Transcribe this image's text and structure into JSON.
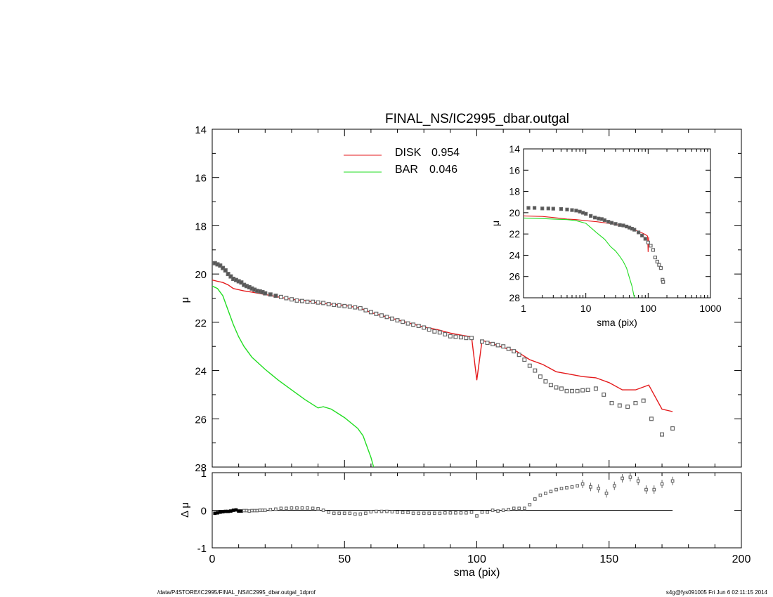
{
  "colors": {
    "disk": "#e41a1c",
    "bar": "#22dd22",
    "data_marker": "#666666",
    "axes": "#000000"
  },
  "footer": {
    "left": "/data/P4STORE/IC2995/FINAL_NS/IC2995_dbar.outgal_1dprof",
    "right": "s4g@fys091005  Fri Jun  6 02:11:15 2014"
  },
  "chart_data": [
    {
      "type": "scatter",
      "title": "FINAL_NS/IC2995_dbar.outgal",
      "xlabel": "",
      "ylabel": "μ",
      "xlim": [
        0,
        200
      ],
      "ylim": [
        28,
        14
      ],
      "y_inverted": true,
      "yticks": [
        14,
        16,
        18,
        20,
        22,
        24,
        26,
        28
      ],
      "legend": [
        {
          "name": "DISK",
          "value": "0.954"
        },
        {
          "name": "BAR",
          "value": "0.046"
        }
      ],
      "legend_position": "top-center",
      "series": [
        {
          "name": "DISK",
          "style": "line",
          "x": [
            0,
            2,
            4,
            6,
            8,
            10,
            12,
            15,
            20,
            25,
            30,
            35,
            40,
            45,
            50,
            55,
            58,
            60,
            65,
            70,
            75,
            80,
            85,
            90,
            95,
            98,
            100,
            102,
            105,
            110,
            115,
            120,
            125,
            130,
            135,
            140,
            145,
            150,
            155,
            160,
            165,
            170,
            174
          ],
          "y": [
            20.25,
            20.3,
            20.35,
            20.45,
            20.6,
            20.65,
            20.7,
            20.75,
            20.85,
            20.95,
            21.05,
            21.1,
            21.2,
            21.25,
            21.3,
            21.4,
            21.5,
            21.6,
            21.75,
            21.9,
            22.05,
            22.2,
            22.3,
            22.45,
            22.55,
            22.6,
            24.4,
            22.75,
            22.85,
            23.05,
            23.2,
            23.55,
            23.75,
            24.05,
            24.15,
            24.25,
            24.3,
            24.5,
            24.8,
            24.8,
            24.6,
            25.6,
            25.7
          ]
        },
        {
          "name": "BAR",
          "style": "line",
          "x": [
            0,
            2,
            4,
            6,
            8,
            10,
            12,
            15,
            20,
            25,
            30,
            35,
            40,
            42,
            45,
            50,
            55,
            57,
            60,
            61
          ],
          "y": [
            20.5,
            20.6,
            20.9,
            21.5,
            22.1,
            22.6,
            23.0,
            23.45,
            23.95,
            24.4,
            24.8,
            25.2,
            25.55,
            25.5,
            25.6,
            25.95,
            26.4,
            26.7,
            27.6,
            28.0
          ]
        },
        {
          "name": "data",
          "style": "markers",
          "x": [
            1,
            2,
            3,
            4,
            5,
            6,
            7,
            8,
            9,
            10,
            11,
            12,
            13,
            14,
            15,
            16,
            17,
            18,
            19,
            20,
            22,
            24,
            26,
            28,
            30,
            32,
            34,
            36,
            38,
            40,
            42,
            44,
            46,
            48,
            50,
            52,
            54,
            56,
            58,
            60,
            62,
            64,
            66,
            68,
            70,
            72,
            74,
            76,
            78,
            80,
            82,
            84,
            86,
            88,
            90,
            92,
            94,
            96,
            98,
            102,
            104,
            106,
            108,
            110,
            112,
            114,
            116,
            118,
            120,
            122,
            124,
            126,
            128,
            130,
            132,
            134,
            136,
            138,
            140,
            142,
            145,
            148,
            151,
            154,
            157,
            160,
            163,
            166,
            170,
            174
          ],
          "y": [
            19.55,
            19.6,
            19.65,
            19.75,
            19.85,
            20.0,
            20.1,
            20.2,
            20.25,
            20.3,
            20.35,
            20.45,
            20.5,
            20.55,
            20.6,
            20.65,
            20.7,
            20.72,
            20.75,
            20.8,
            20.85,
            20.9,
            20.95,
            21.0,
            21.05,
            21.1,
            21.12,
            21.15,
            21.15,
            21.18,
            21.2,
            21.25,
            21.28,
            21.3,
            21.33,
            21.35,
            21.38,
            21.42,
            21.5,
            21.58,
            21.65,
            21.72,
            21.78,
            21.85,
            21.92,
            21.98,
            22.05,
            22.1,
            22.15,
            22.22,
            22.3,
            22.38,
            22.42,
            22.5,
            22.58,
            22.6,
            22.62,
            22.65,
            22.65,
            22.8,
            22.85,
            22.9,
            22.95,
            23.0,
            23.1,
            23.2,
            23.35,
            23.55,
            23.8,
            24.0,
            24.25,
            24.45,
            24.6,
            24.7,
            24.75,
            24.85,
            24.85,
            24.85,
            24.82,
            24.8,
            24.75,
            25.0,
            25.35,
            25.45,
            25.5,
            25.35,
            25.25,
            26.0,
            26.65,
            26.4
          ]
        }
      ]
    },
    {
      "type": "scatter",
      "title": "",
      "xlabel": "sma (pix)",
      "ylabel": "μ",
      "xscale": "log",
      "xlim": [
        1,
        1000
      ],
      "xticks": [
        "1",
        "10",
        "100",
        "1000"
      ],
      "ylim": [
        28,
        14
      ],
      "y_inverted": true,
      "yticks": [
        14,
        16,
        18,
        20,
        22,
        24,
        26,
        28
      ],
      "inset_position": "top-right",
      "series": [
        {
          "name": "DISK",
          "style": "line",
          "x": [
            1,
            2,
            3,
            5,
            7,
            10,
            15,
            20,
            30,
            40,
            50,
            60,
            70,
            80,
            90,
            98,
            100,
            102
          ],
          "y": [
            20.3,
            20.35,
            20.45,
            20.6,
            20.65,
            20.75,
            20.85,
            20.95,
            21.1,
            21.25,
            21.4,
            21.6,
            21.75,
            21.9,
            22.05,
            22.2,
            23.7,
            22.3
          ]
        },
        {
          "name": "BAR",
          "style": "line",
          "x": [
            1,
            2,
            3,
            5,
            7,
            10,
            12,
            15,
            20,
            25,
            30,
            35,
            40,
            45,
            50,
            55,
            60
          ],
          "y": [
            20.5,
            20.55,
            20.6,
            20.65,
            20.75,
            21.0,
            21.4,
            21.9,
            22.5,
            23.2,
            23.6,
            24.1,
            24.6,
            25.2,
            26.1,
            26.9,
            28.0
          ]
        },
        {
          "name": "data",
          "style": "markers",
          "x": [
            1.2,
            1.5,
            2,
            2.5,
            3,
            4,
            5,
            6,
            7,
            8,
            9,
            10,
            12,
            14,
            16,
            18,
            20,
            23,
            26,
            30,
            35,
            40,
            45,
            50,
            55,
            60,
            70,
            80,
            90,
            100,
            110,
            120,
            130,
            140,
            150,
            160,
            170,
            174
          ],
          "y": [
            19.55,
            19.55,
            19.6,
            19.6,
            19.62,
            19.65,
            19.7,
            19.75,
            19.8,
            19.9,
            20.0,
            20.1,
            20.3,
            20.45,
            20.55,
            20.6,
            20.7,
            20.85,
            20.95,
            21.05,
            21.15,
            21.2,
            21.3,
            21.4,
            21.5,
            21.6,
            21.85,
            22.15,
            22.45,
            22.8,
            23.1,
            23.5,
            24.2,
            24.6,
            24.9,
            25.2,
            26.3,
            26.5
          ]
        }
      ]
    },
    {
      "type": "scatter",
      "title": "",
      "xlabel": "sma (pix)",
      "ylabel": "Δ μ",
      "xlim": [
        0,
        200
      ],
      "xticks": [
        0,
        50,
        100,
        150,
        200
      ],
      "ylim": [
        -1,
        1
      ],
      "yticks": [
        -1,
        0,
        1
      ],
      "reference_line": {
        "y": 0,
        "x_end": 174
      },
      "series": [
        {
          "name": "residual",
          "style": "markers",
          "x": [
            1,
            2,
            3,
            4,
            5,
            6,
            7,
            8,
            9,
            10,
            11,
            12,
            13,
            14,
            15,
            16,
            17,
            18,
            19,
            20,
            22,
            24,
            26,
            28,
            30,
            32,
            34,
            36,
            38,
            40,
            42,
            44,
            46,
            48,
            50,
            52,
            54,
            56,
            58,
            60,
            62,
            64,
            66,
            68,
            70,
            72,
            74,
            76,
            78,
            80,
            82,
            84,
            86,
            88,
            90,
            92,
            94,
            96,
            98,
            100,
            102,
            104,
            106,
            108,
            110,
            112,
            114,
            116,
            118,
            120,
            122,
            124,
            126,
            128,
            130,
            132,
            134,
            136,
            138,
            140,
            143,
            146,
            149,
            152,
            155,
            158,
            161,
            164,
            167,
            170,
            174
          ],
          "y": [
            -0.08,
            -0.07,
            -0.05,
            -0.04,
            -0.03,
            -0.03,
            -0.02,
            0.0,
            0.01,
            -0.02,
            -0.02,
            -0.01,
            -0.01,
            -0.02,
            -0.01,
            -0.01,
            -0.01,
            0.0,
            0.0,
            0.0,
            0.02,
            0.03,
            0.05,
            0.05,
            0.06,
            0.06,
            0.06,
            0.06,
            0.05,
            0.04,
            0.0,
            -0.05,
            -0.08,
            -0.08,
            -0.08,
            -0.08,
            -0.1,
            -0.1,
            -0.08,
            -0.04,
            -0.03,
            -0.03,
            -0.03,
            -0.04,
            -0.05,
            -0.06,
            -0.06,
            -0.08,
            -0.08,
            -0.08,
            -0.08,
            -0.08,
            -0.08,
            -0.07,
            -0.07,
            -0.07,
            -0.07,
            -0.07,
            -0.05,
            -0.15,
            -0.05,
            -0.05,
            0.0,
            -0.02,
            0.0,
            0.02,
            0.05,
            0.05,
            0.05,
            0.15,
            0.3,
            0.4,
            0.45,
            0.5,
            0.55,
            0.58,
            0.6,
            0.62,
            0.65,
            0.7,
            0.62,
            0.58,
            0.45,
            0.65,
            0.85,
            0.88,
            0.78,
            0.55,
            0.55,
            0.7,
            0.78
          ]
        }
      ]
    }
  ]
}
